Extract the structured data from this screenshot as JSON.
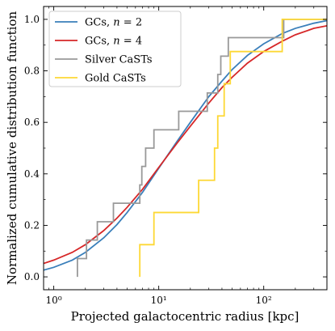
{
  "chart_data": {
    "type": "line",
    "xlabel": "Projected galactocentric radius [kpc]",
    "ylabel": "Normalized cumulative distribution function",
    "xscale": "log",
    "xlim": [
      0.8,
      400
    ],
    "ylim": [
      -0.05,
      1.05
    ],
    "xticks": [
      {
        "value": 1,
        "label": "10⁰"
      },
      {
        "value": 10,
        "label": "10¹"
      },
      {
        "value": 100,
        "label": "10²"
      }
    ],
    "yticks": [
      0.0,
      0.2,
      0.4,
      0.6,
      0.8,
      1.0
    ],
    "ytick_labels": [
      "0.0",
      "0.2",
      "0.4",
      "0.6",
      "0.8",
      "1.0"
    ],
    "grid": false,
    "legend_position": "top-left",
    "series": [
      {
        "name": "GCs, n = 2",
        "name_prefix": "GCs, ",
        "name_var": "n",
        "name_suffix": " = 2",
        "kind": "curve",
        "color": "#3a7fba",
        "x": [
          0.8,
          1,
          1.5,
          2,
          3,
          4,
          5,
          7,
          10,
          15,
          20,
          30,
          40,
          50,
          70,
          100,
          150,
          200,
          300,
          400
        ],
        "y": [
          0.026,
          0.037,
          0.065,
          0.095,
          0.152,
          0.203,
          0.25,
          0.328,
          0.422,
          0.527,
          0.6,
          0.7,
          0.76,
          0.805,
          0.86,
          0.905,
          0.945,
          0.965,
          0.985,
          0.995
        ]
      },
      {
        "name": "GCs, n = 4",
        "name_prefix": "GCs, ",
        "name_var": "n",
        "name_suffix": " = 4",
        "kind": "curve",
        "color": "#d62728",
        "x": [
          0.8,
          1,
          1.5,
          2,
          3,
          4,
          5,
          7,
          10,
          15,
          20,
          30,
          40,
          50,
          70,
          100,
          150,
          200,
          300,
          400
        ],
        "y": [
          0.052,
          0.065,
          0.095,
          0.125,
          0.18,
          0.228,
          0.27,
          0.34,
          0.425,
          0.52,
          0.585,
          0.675,
          0.735,
          0.775,
          0.83,
          0.875,
          0.915,
          0.94,
          0.965,
          0.975
        ]
      },
      {
        "name": "Silver CaSTs",
        "kind": "step",
        "color": "#999999",
        "x": [
          1.68,
          1.68,
          2.05,
          2.05,
          2.6,
          2.6,
          3.7,
          3.7,
          6.6,
          6.6,
          6.9,
          6.9,
          7.5,
          7.5,
          9.0,
          9.0,
          15.5,
          15.5,
          24.0,
          24.0,
          29.0,
          29.0,
          36.5,
          36.5,
          39.0,
          39.0,
          44.0,
          44.0,
          46.0,
          46.0,
          48.0,
          48.0,
          155.0,
          155.0,
          400
        ],
        "y": [
          0.0,
          0.071,
          0.071,
          0.143,
          0.143,
          0.214,
          0.214,
          0.286,
          0.286,
          0.357,
          0.357,
          0.429,
          0.429,
          0.5,
          0.5,
          0.571,
          0.571,
          0.643,
          0.643,
          0.643,
          0.643,
          0.714,
          0.714,
          0.786,
          0.786,
          0.857,
          0.857,
          0.857,
          0.857,
          0.929,
          0.929,
          0.929,
          0.929,
          1.0,
          1.0
        ]
      },
      {
        "name": "Gold CaSTs",
        "kind": "step",
        "color": "#fdd835",
        "x": [
          6.6,
          6.6,
          9.0,
          9.0,
          24.0,
          24.0,
          34.0,
          34.0,
          36.5,
          36.5,
          42.0,
          42.0,
          48.0,
          48.0,
          150.0,
          150.0,
          400
        ],
        "y": [
          0.0,
          0.125,
          0.125,
          0.25,
          0.25,
          0.375,
          0.375,
          0.5,
          0.5,
          0.625,
          0.625,
          0.75,
          0.75,
          0.875,
          0.875,
          1.0,
          1.0
        ]
      }
    ]
  }
}
